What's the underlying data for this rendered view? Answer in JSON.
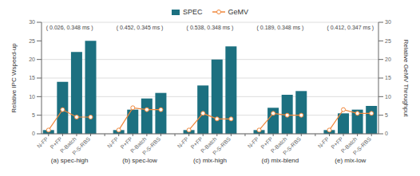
{
  "chart_data": {
    "type": "bar",
    "categories": [
      "N-FP",
      "P+FP",
      "P-Batch",
      "P-S-RBS"
    ],
    "groups": [
      {
        "label": "(a) spec-high",
        "annotation": "( 0.026, 0.348 ms )"
      },
      {
        "label": "(b) spec-low",
        "annotation": "( 0.452, 0.345 ms )"
      },
      {
        "label": "(c) mix-high",
        "annotation": "( 0.538, 0.348 ms )"
      },
      {
        "label": "(d) mix-blend",
        "annotation": "( 0.189, 0.348 ms )"
      },
      {
        "label": "(e) mix-low",
        "annotation": "( 0.412, 0.347 ms )"
      }
    ],
    "series": [
      {
        "name": "SPEC",
        "type": "bar",
        "color": "#1c7080",
        "values": [
          [
            1.0,
            14.0,
            22.0,
            25.0
          ],
          [
            1.0,
            6.5,
            9.5,
            11.0
          ],
          [
            1.0,
            13.0,
            20.0,
            23.5
          ],
          [
            1.0,
            7.0,
            10.5,
            11.5
          ],
          [
            1.0,
            5.5,
            6.5,
            7.5
          ]
        ]
      },
      {
        "name": "GeMV",
        "type": "line",
        "axis": "y2",
        "color": "#f0873b",
        "marker": "o",
        "values": [
          [
            1.0,
            6.5,
            4.5,
            4.5
          ],
          [
            1.0,
            7.0,
            6.5,
            6.5
          ],
          [
            1.0,
            5.5,
            4.0,
            4.0
          ],
          [
            1.0,
            5.5,
            5.0,
            5.0
          ],
          [
            1.0,
            6.5,
            5.5,
            5.5
          ]
        ]
      }
    ],
    "y_label": "Relative IPC Wspeed-up",
    "y2_label": "Relative GeMV Throughput",
    "ylim": [
      0,
      30
    ],
    "yticks": [
      0,
      5,
      10,
      15,
      20,
      25,
      30
    ],
    "y2lim": [
      0,
      30
    ],
    "y2ticks": [
      0,
      5,
      10,
      15,
      20,
      25,
      30
    ],
    "grid": true,
    "legend": "top"
  }
}
